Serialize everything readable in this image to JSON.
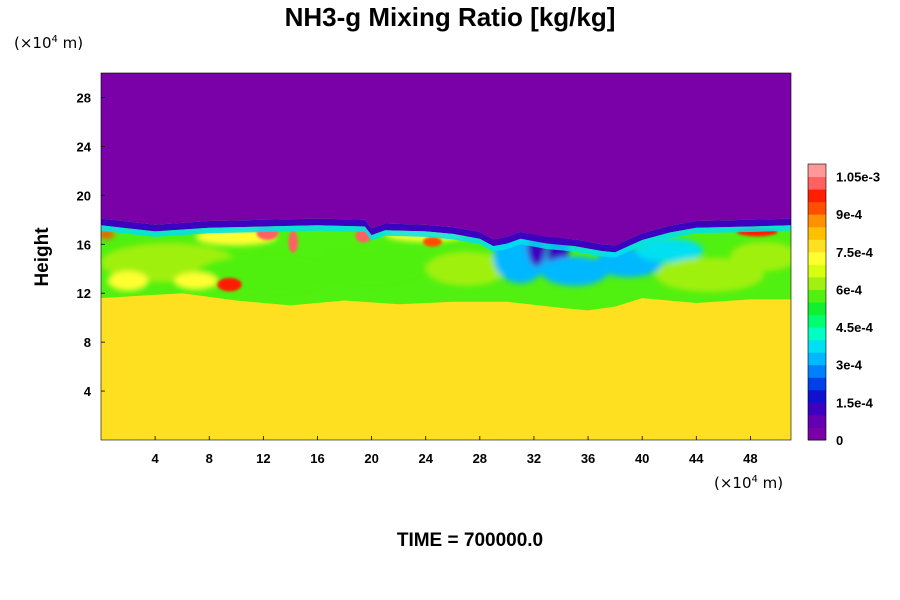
{
  "chart_data": {
    "type": "heatmap",
    "title": "NH3-g Mixing Ratio [kg/kg]",
    "ylabel": "Height",
    "xlabel": "",
    "x_unit": {
      "pre": "(×10",
      "exp": "4",
      "post": " m)"
    },
    "y_unit": {
      "pre": "(×10",
      "exp": "4",
      "post": " m)"
    },
    "xlim": [
      0,
      51
    ],
    "ylim": [
      0,
      30
    ],
    "x_ticks": [
      4,
      8,
      12,
      16,
      20,
      24,
      28,
      32,
      36,
      40,
      44,
      48
    ],
    "y_ticks": [
      4,
      8,
      12,
      16,
      20,
      24,
      28
    ],
    "colorbar": {
      "min": 0,
      "max": 0.0011,
      "tick_values": [
        0,
        0.00015,
        0.0003,
        0.00045,
        0.0006,
        0.00075,
        0.0009,
        0.00105
      ],
      "tick_labels": [
        "0",
        "1.5e-4",
        "3e-4",
        "4.5e-4",
        "6e-4",
        "7.5e-4",
        "9e-4",
        "1.05e-3"
      ],
      "colors": [
        "#7a00a8",
        "#6400b0",
        "#3d00c0",
        "#1010d0",
        "#0040e8",
        "#0080ff",
        "#00b8ff",
        "#00e0f0",
        "#00ffc0",
        "#00ff70",
        "#10f030",
        "#50f010",
        "#a0f010",
        "#d8ff10",
        "#ffff30",
        "#ffe020",
        "#ffc000",
        "#ff9000",
        "#ff5000",
        "#ff1e00",
        "#ff6060",
        "#ff9999"
      ]
    },
    "layers": [
      {
        "name": "upper",
        "y_from": 18,
        "y_to": 30,
        "value": 0
      },
      {
        "name": "lower",
        "y_from": 0,
        "y_to": 11,
        "value": 0.00077
      }
    ],
    "top_boundary": [
      [
        0,
        18.1
      ],
      [
        4,
        17.6
      ],
      [
        8,
        17.9
      ],
      [
        12,
        18.0
      ],
      [
        16,
        18.1
      ],
      [
        19.5,
        18.0
      ],
      [
        20,
        17.3
      ],
      [
        21,
        17.7
      ],
      [
        24,
        17.6
      ],
      [
        26,
        17.4
      ],
      [
        28,
        17.0
      ],
      [
        29,
        16.4
      ],
      [
        30,
        16.6
      ],
      [
        31,
        17.0
      ],
      [
        33,
        16.6
      ],
      [
        35,
        16.4
      ],
      [
        37,
        16.0
      ],
      [
        38,
        15.9
      ],
      [
        40,
        16.9
      ],
      [
        42,
        17.5
      ],
      [
        44,
        17.9
      ],
      [
        48,
        18.0
      ],
      [
        51,
        18.1
      ]
    ],
    "mix_bottom": [
      [
        0,
        11.6
      ],
      [
        6,
        12.0
      ],
      [
        10,
        11.4
      ],
      [
        14,
        11.0
      ],
      [
        18,
        11.4
      ],
      [
        22,
        11.1
      ],
      [
        26,
        11.3
      ],
      [
        30,
        11.3
      ],
      [
        34,
        10.8
      ],
      [
        36,
        10.6
      ],
      [
        38,
        10.9
      ],
      [
        40,
        11.6
      ],
      [
        44,
        11.2
      ],
      [
        48,
        11.5
      ],
      [
        51,
        11.5
      ]
    ],
    "features": [
      {
        "x": 5,
        "y": 14.5,
        "rx": 5,
        "ry": 1.6,
        "value": 0.0006
      },
      {
        "x": 12,
        "y": 13.5,
        "rx": 5,
        "ry": 1.6,
        "value": 0.00058
      },
      {
        "x": 20,
        "y": 14.2,
        "rx": 4,
        "ry": 1.4,
        "value": 0.00057
      },
      {
        "x": 27,
        "y": 14.0,
        "rx": 3,
        "ry": 1.4,
        "value": 0.0006
      },
      {
        "x": 31,
        "y": 15.0,
        "rx": 2,
        "ry": 2.2,
        "value": 0.0003
      },
      {
        "x": 32.2,
        "y": 16.0,
        "rx": 0.7,
        "ry": 1.8,
        "value": 0.0001
      },
      {
        "x": 33.8,
        "y": 15.0,
        "rx": 0.8,
        "ry": 2.0,
        "value": 0.0001
      },
      {
        "x": 35,
        "y": 13.8,
        "rx": 2.5,
        "ry": 1.2,
        "value": 0.0003
      },
      {
        "x": 39,
        "y": 14.5,
        "rx": 2.5,
        "ry": 1.2,
        "value": 0.00033
      },
      {
        "x": 42,
        "y": 15.5,
        "rx": 2.5,
        "ry": 1.0,
        "value": 0.00038
      },
      {
        "x": 45,
        "y": 13.5,
        "rx": 4,
        "ry": 1.4,
        "value": 0.00062
      },
      {
        "x": 49,
        "y": 15.0,
        "rx": 2.5,
        "ry": 1.2,
        "value": 0.0006
      },
      {
        "x": 10,
        "y": 16.6,
        "rx": 3,
        "ry": 0.7,
        "value": 0.0007
      },
      {
        "x": 24,
        "y": 16.8,
        "rx": 3,
        "ry": 0.6,
        "value": 0.0007
      },
      {
        "x": 12.3,
        "y": 16.9,
        "rx": 0.8,
        "ry": 0.55,
        "value": 0.00102
      },
      {
        "x": 14.2,
        "y": 16.2,
        "rx": 0.35,
        "ry": 0.9,
        "value": 0.001
      },
      {
        "x": 19.4,
        "y": 16.7,
        "rx": 0.6,
        "ry": 0.55,
        "value": 0.001
      },
      {
        "x": 24.5,
        "y": 16.2,
        "rx": 0.7,
        "ry": 0.4,
        "value": 0.00095
      },
      {
        "x": 9.5,
        "y": 12.7,
        "rx": 0.9,
        "ry": 0.55,
        "value": 0.00098
      },
      {
        "x": 48.5,
        "y": 17.0,
        "rx": 1.5,
        "ry": 0.35,
        "value": 0.00098
      },
      {
        "x": 0.4,
        "y": 16.8,
        "rx": 0.6,
        "ry": 0.35,
        "value": 0.0009
      },
      {
        "x": 2,
        "y": 13.0,
        "rx": 1.5,
        "ry": 0.8,
        "value": 0.0007
      },
      {
        "x": 7,
        "y": 13.0,
        "rx": 1.6,
        "ry": 0.7,
        "value": 0.00072
      }
    ]
  },
  "footer": {
    "time_text": "TIME = 700000.0"
  }
}
